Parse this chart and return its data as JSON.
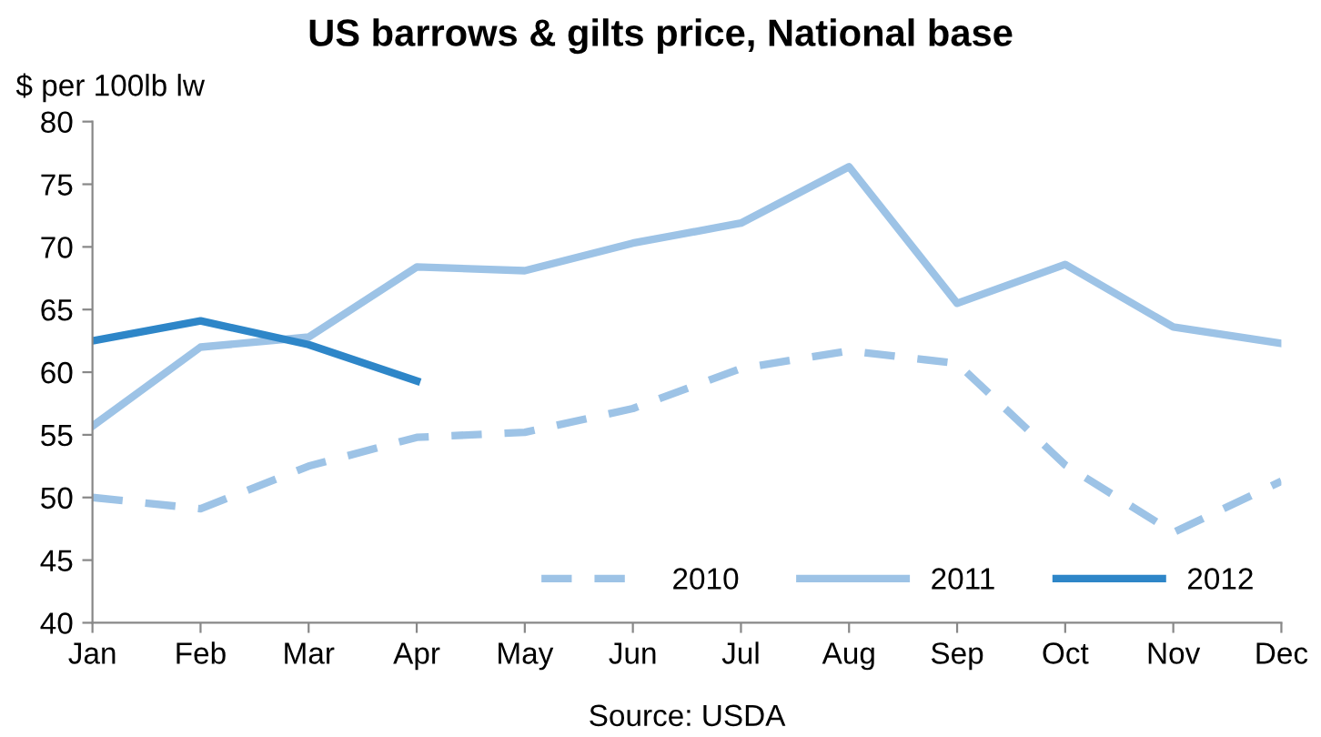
{
  "chart_data": {
    "type": "line",
    "title": "US barrows & gilts price, National base",
    "ylabel": "$ per 100lb lw",
    "categories": [
      "Jan",
      "Feb",
      "Mar",
      "Apr",
      "May",
      "Jun",
      "Jul",
      "Aug",
      "Sep",
      "Oct",
      "Nov",
      "Dec"
    ],
    "series": [
      {
        "name": "2010",
        "color": "#9dc3e6",
        "line_style": "dashed",
        "values": [
          50.0,
          49.1,
          52.5,
          54.8,
          55.2,
          57.1,
          60.3,
          61.7,
          60.7,
          52.6,
          47.2,
          51.3
        ]
      },
      {
        "name": "2011",
        "color": "#9dc3e6",
        "line_style": "solid",
        "values": [
          55.7,
          62.0,
          62.8,
          68.4,
          68.1,
          70.3,
          71.9,
          76.4,
          65.5,
          68.6,
          63.6,
          62.3
        ]
      },
      {
        "name": "2012",
        "color": "#2e86c8",
        "line_style": "solid",
        "values": [
          62.5,
          64.1,
          62.2,
          59.3,
          null,
          null,
          null,
          null,
          null,
          null,
          null,
          null
        ]
      }
    ],
    "ylim": [
      40,
      80
    ],
    "yticks": [
      40,
      45,
      50,
      55,
      60,
      65,
      70,
      75,
      80
    ],
    "grid": false,
    "legend": "bottom right",
    "marker": "none",
    "annotations": [
      "Source: USDA"
    ]
  }
}
